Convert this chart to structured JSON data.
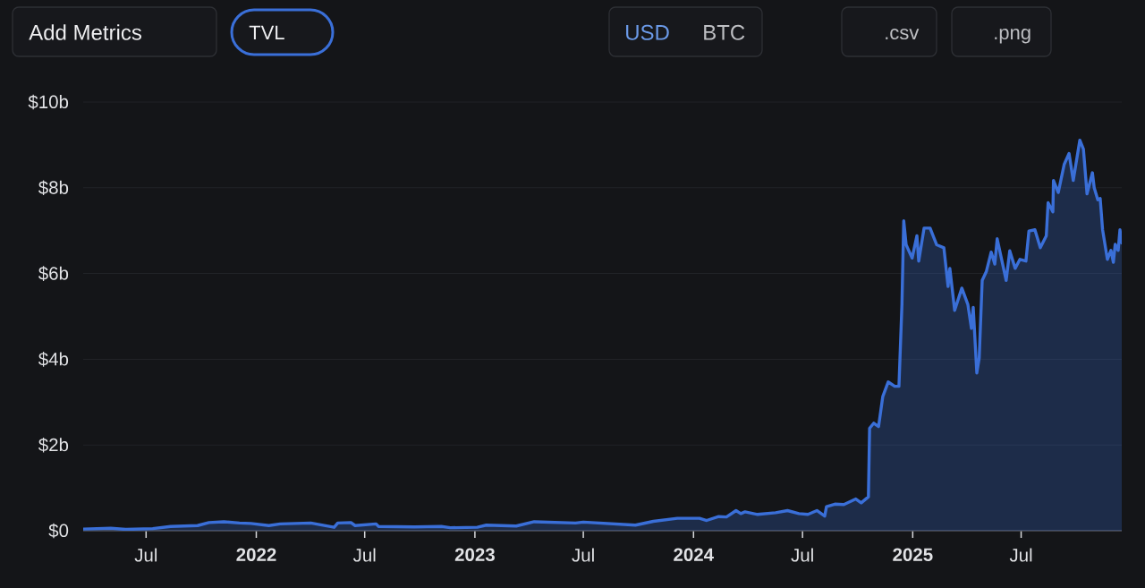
{
  "chart_data": {
    "type": "area",
    "annotations": [
      "Add Metrics",
      "TVL",
      "USD",
      "BTC",
      ".csv",
      ".png"
    ],
    "color": "#3a6fd8",
    "x": [
      "2021-03-18",
      "2021-05-03",
      "2021-05-28",
      "2021-07-12",
      "2021-08-11",
      "2021-09-25",
      "2021-10-14",
      "2021-11-08",
      "2021-12-04",
      "2021-12-23",
      "2022-01-22",
      "2022-02-10",
      "2022-04-02",
      "2022-05-11",
      "2022-05-17",
      "2022-06-08",
      "2022-06-15",
      "2022-07-20",
      "2022-07-24",
      "2022-09-22",
      "2022-11-06",
      "2022-11-21",
      "2023-01-05",
      "2023-01-20",
      "2023-03-11",
      "2023-04-10",
      "2023-06-18",
      "2023-07-01",
      "2023-09-26",
      "2023-10-26",
      "2023-12-05",
      "2024-01-11",
      "2024-01-23",
      "2024-02-12",
      "2024-02-25",
      "2024-03-12",
      "2024-03-20",
      "2024-03-27",
      "2024-04-17",
      "2024-05-17",
      "2024-06-06",
      "2024-06-25",
      "2024-07-10",
      "2024-07-25",
      "2024-08-07",
      "2024-08-10",
      "2024-08-24",
      "2024-09-08",
      "2024-09-28",
      "2024-10-07",
      "2024-10-19",
      "2024-10-21",
      "2024-10-28",
      "2024-11-05",
      "2024-11-12",
      "2024-11-21",
      "2024-12-02",
      "2024-12-09",
      "2024-12-14",
      "2024-12-17",
      "2024-12-21",
      "2024-12-31",
      "2025-01-08",
      "2025-01-11",
      "2025-01-20",
      "2025-01-30",
      "2025-02-10",
      "2025-02-22",
      "2025-03-01",
      "2025-03-04",
      "2025-03-12",
      "2025-03-24",
      "2025-04-03",
      "2025-04-09",
      "2025-04-12",
      "2025-04-18",
      "2025-04-22",
      "2025-04-27",
      "2025-05-04",
      "2025-05-12",
      "2025-05-18",
      "2025-05-22",
      "2025-06-06",
      "2025-06-12",
      "2025-06-21",
      "2025-06-29",
      "2025-07-09",
      "2025-07-14",
      "2025-07-24",
      "2025-08-02",
      "2025-08-12",
      "2025-08-15",
      "2025-08-23",
      "2025-08-24",
      "2025-09-01",
      "2025-09-11",
      "2025-09-19",
      "2025-09-26",
      "2025-10-07",
      "2025-10-13",
      "2025-10-19",
      "2025-10-28",
      "2025-10-31",
      "2025-11-06",
      "2025-11-10",
      "2025-11-14",
      "2025-11-22",
      "2025-11-28",
      "2025-12-02",
      "2025-12-05",
      "2025-12-10",
      "2025-12-13",
      "2025-12-16"
    ],
    "values": [
      0.04,
      0.06,
      0.03,
      0.05,
      0.1,
      0.12,
      0.19,
      0.21,
      0.18,
      0.17,
      0.12,
      0.16,
      0.18,
      0.08,
      0.18,
      0.19,
      0.12,
      0.16,
      0.1,
      0.09,
      0.1,
      0.07,
      0.08,
      0.13,
      0.11,
      0.21,
      0.18,
      0.2,
      0.13,
      0.22,
      0.29,
      0.29,
      0.24,
      0.33,
      0.32,
      0.47,
      0.4,
      0.44,
      0.38,
      0.42,
      0.47,
      0.4,
      0.38,
      0.47,
      0.34,
      0.56,
      0.62,
      0.61,
      0.74,
      0.65,
      0.79,
      2.39,
      2.51,
      2.43,
      3.13,
      3.47,
      3.37,
      3.37,
      5.28,
      7.23,
      6.67,
      6.36,
      6.88,
      6.29,
      7.06,
      7.06,
      6.67,
      6.6,
      5.7,
      6.12,
      5.14,
      5.66,
      5.28,
      4.72,
      5.21,
      3.68,
      4.03,
      5.84,
      6.05,
      6.5,
      6.22,
      6.81,
      5.84,
      6.53,
      6.12,
      6.33,
      6.29,
      6.99,
      7.02,
      6.6,
      6.88,
      7.65,
      7.44,
      8.17,
      7.89,
      8.55,
      8.8,
      8.17,
      9.11,
      8.9,
      7.86,
      8.35,
      8.0,
      7.72,
      7.75,
      7.02,
      6.33,
      6.54,
      6.26,
      6.68,
      6.54,
      7.02,
      6.71
    ],
    "xlim": [
      "2021-03-18",
      "2025-12-16"
    ],
    "xticks": [
      {
        "value": "2021-07-01",
        "label": "Jul"
      },
      {
        "value": "2022-01-01",
        "label": "**2022**"
      },
      {
        "value": "2022-07-01",
        "label": "Jul"
      },
      {
        "value": "2023-01-01",
        "label": "**2023**"
      },
      {
        "value": "2023-07-01",
        "label": "Jul"
      },
      {
        "value": "2024-01-01",
        "label": "**2024**"
      },
      {
        "value": "2024-07-01",
        "label": "Jul"
      },
      {
        "value": "2025-01-01",
        "label": "**2025**"
      },
      {
        "value": "2025-07-01",
        "label": "Jul"
      }
    ],
    "ylim": [
      0,
      10
    ],
    "yticks": [
      {
        "value": 0,
        "label": "$0"
      },
      {
        "value": 2,
        "label": "$2b"
      },
      {
        "value": 4,
        "label": "$4b"
      },
      {
        "value": 6,
        "label": "$6b"
      },
      {
        "value": 8,
        "label": "$8b"
      },
      {
        "value": 10,
        "label": "$10b"
      }
    ],
    "grid": "y"
  }
}
